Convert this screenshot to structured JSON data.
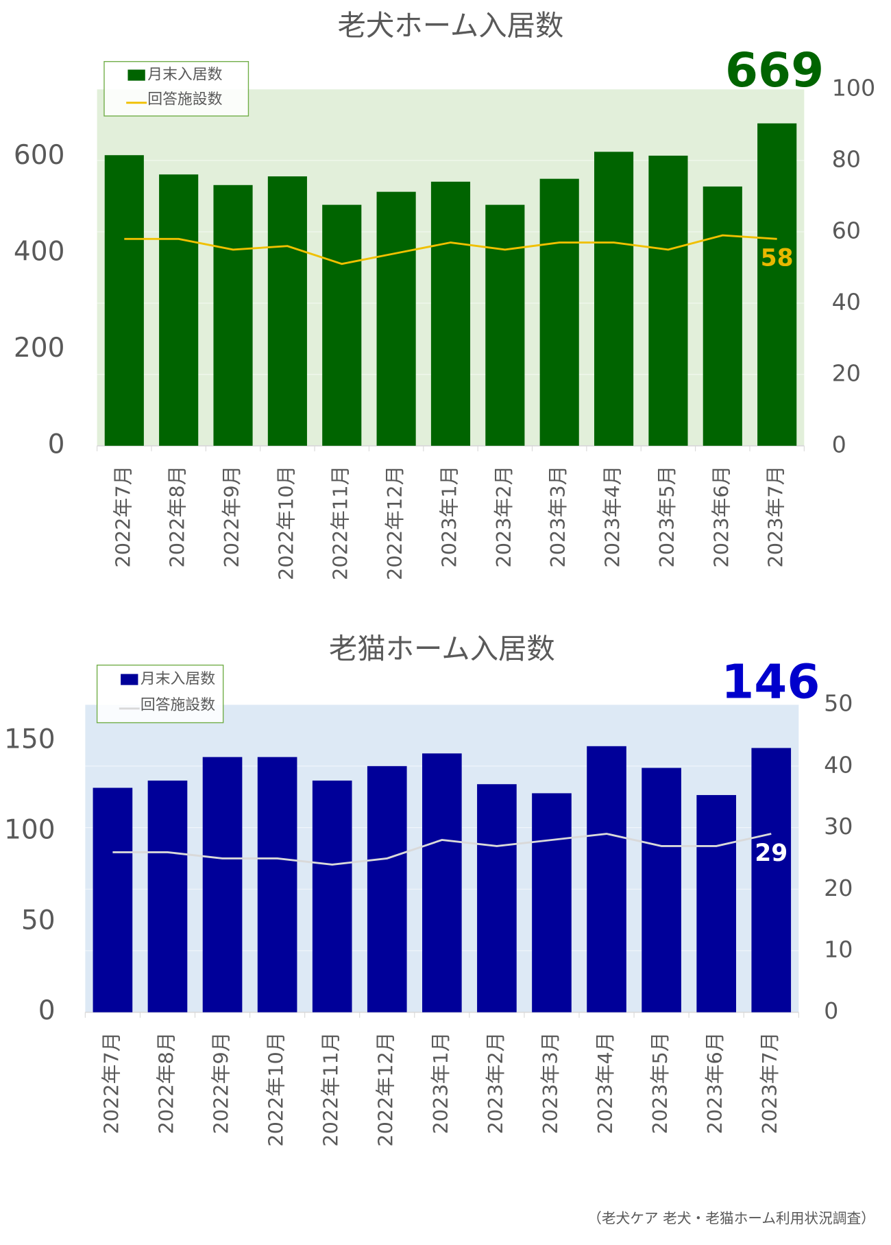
{
  "chart_data": [
    {
      "type": "bar_line",
      "title": "老犬ホーム入居数",
      "categories": [
        "2022年7月",
        "2022年8月",
        "2022年9月",
        "2022年10月",
        "2022年11月",
        "2022年12月",
        "2023年1月",
        "2023年2月",
        "2023年3月",
        "2023年4月",
        "2023年5月",
        "2023年6月",
        "2023年7月"
      ],
      "series": [
        {
          "name": "月末入居数",
          "type": "bar",
          "color": "#006400",
          "label_color": "#006400",
          "values": [
            603,
            563,
            541,
            559,
            500,
            527,
            548,
            500,
            554,
            610,
            602,
            538,
            669
          ]
        },
        {
          "name": "回答施設数",
          "type": "line",
          "axis": "y2",
          "color": "#f0c000",
          "label_color": "#e8b800",
          "values": [
            58,
            58,
            55,
            56,
            51,
            54,
            57,
            55,
            57,
            57,
            55,
            59,
            58
          ]
        }
      ],
      "ylim": [
        0,
        740
      ],
      "yticks": [
        0,
        200,
        400,
        600
      ],
      "y2lim": [
        0,
        100
      ],
      "y2ticks": [
        0,
        20,
        40,
        60,
        80,
        100
      ],
      "background": "#e2efda",
      "legend_border": "#70ad47",
      "grid": true
    },
    {
      "type": "bar_line",
      "title": "老猫ホーム入居数",
      "categories": [
        "2022年7月",
        "2022年8月",
        "2022年9月",
        "2022年10月",
        "2022年11月",
        "2022年12月",
        "2023年1月",
        "2023年2月",
        "2023年3月",
        "2023年4月",
        "2023年5月",
        "2023年6月",
        "2023年7月"
      ],
      "series": [
        {
          "name": "月末入居数",
          "type": "bar",
          "color": "#000099",
          "label_color": "#0000cc",
          "values": [
            124,
            128,
            141,
            141,
            128,
            136,
            143,
            126,
            121,
            147,
            135,
            120,
            146
          ]
        },
        {
          "name": "回答施設数",
          "type": "line",
          "axis": "y2",
          "color": "#d9d9d9",
          "label_color": "#ffffff",
          "values": [
            26,
            26,
            25,
            25,
            24,
            25,
            28,
            27,
            28,
            29,
            27,
            27,
            29
          ]
        }
      ],
      "ylim": [
        0,
        170
      ],
      "yticks": [
        0,
        50,
        100,
        150
      ],
      "y2lim": [
        0,
        50
      ],
      "y2ticks": [
        0,
        10,
        20,
        30,
        40,
        50
      ],
      "background": "#dde9f5",
      "legend_border": "#70ad47",
      "grid": true
    }
  ],
  "footnote": "（老犬ケア 老犬・老猫ホーム利用状況調査）"
}
